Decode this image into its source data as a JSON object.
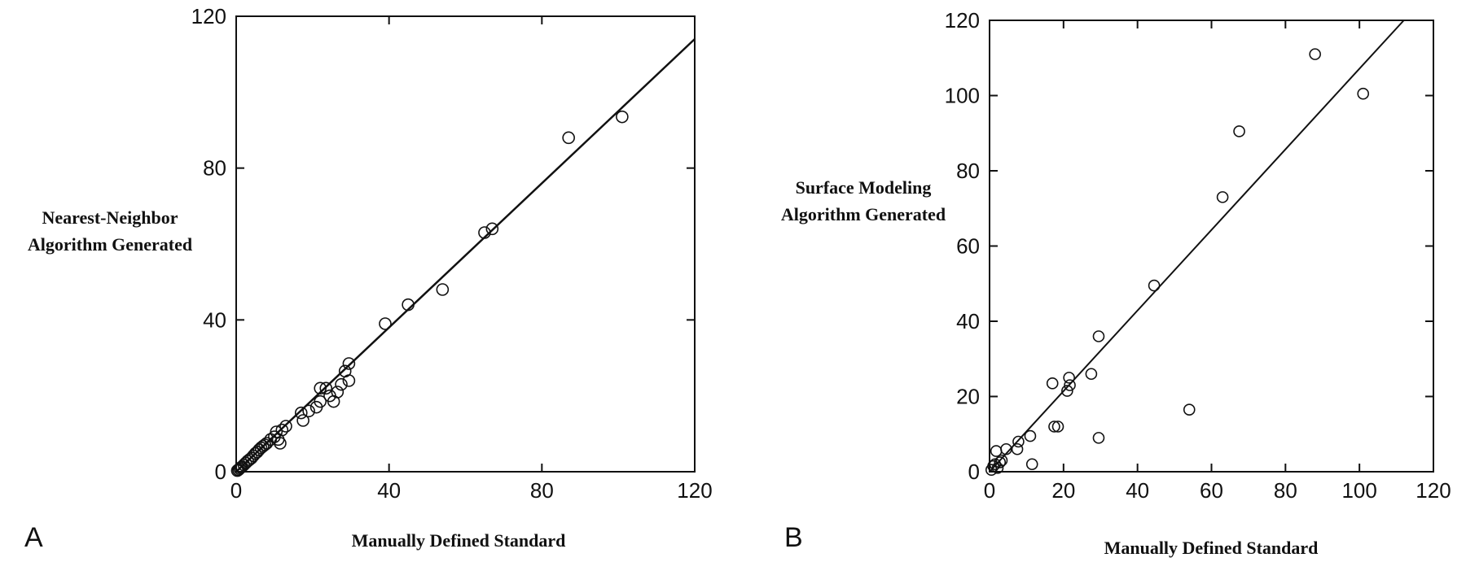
{
  "chart_data": [
    {
      "type": "scatter",
      "panel_label": "A",
      "xlabel": "Manually Defined Standard",
      "ylabel_lines": [
        "Nearest-Neighbor",
        "Algorithm Generated"
      ],
      "xlim": [
        0,
        120
      ],
      "ylim": [
        0,
        120
      ],
      "xticks": [
        0,
        40,
        80,
        120
      ],
      "yticks": [
        0,
        40,
        80,
        120
      ],
      "grid": false,
      "line": {
        "x": [
          0,
          120
        ],
        "y": [
          0,
          114
        ]
      },
      "points": [
        [
          0.3,
          0.3
        ],
        [
          0.6,
          0.5
        ],
        [
          0.9,
          0.8
        ],
        [
          1.2,
          1.1
        ],
        [
          1.5,
          1.3
        ],
        [
          2,
          1.8
        ],
        [
          2.5,
          2.3
        ],
        [
          3,
          2.8
        ],
        [
          3.5,
          3.2
        ],
        [
          4,
          3.6
        ],
        [
          4.5,
          4.2
        ],
        [
          5,
          4.8
        ],
        [
          5.5,
          5.2
        ],
        [
          6,
          5.8
        ],
        [
          6.5,
          6.3
        ],
        [
          7,
          6.7
        ],
        [
          7.5,
          7.1
        ],
        [
          8,
          7.5
        ],
        [
          9,
          8.5
        ],
        [
          10,
          9.2
        ],
        [
          10.5,
          10.5
        ],
        [
          11,
          8.5
        ],
        [
          11.5,
          7.5
        ],
        [
          12,
          11
        ],
        [
          13,
          12
        ],
        [
          17,
          15.5
        ],
        [
          17.5,
          13.5
        ],
        [
          19,
          16
        ],
        [
          21,
          17
        ],
        [
          22,
          18.5
        ],
        [
          22,
          22
        ],
        [
          23.5,
          22
        ],
        [
          24.5,
          20
        ],
        [
          25.5,
          18.5
        ],
        [
          26.5,
          21
        ],
        [
          27.5,
          23
        ],
        [
          28.5,
          26.5
        ],
        [
          29.5,
          28.5
        ],
        [
          29.5,
          24
        ],
        [
          39,
          39
        ],
        [
          45,
          44
        ],
        [
          54,
          48
        ],
        [
          65,
          63
        ],
        [
          67,
          64
        ],
        [
          87,
          88
        ],
        [
          101,
          93.5
        ]
      ]
    },
    {
      "type": "scatter",
      "panel_label": "B",
      "xlabel": "Manually Defined Standard",
      "ylabel_lines": [
        "Surface Modeling",
        "Algorithm Generated"
      ],
      "xlim": [
        0,
        120
      ],
      "ylim": [
        0,
        120
      ],
      "xticks": [
        0,
        20,
        40,
        60,
        80,
        100,
        120
      ],
      "yticks": [
        0,
        20,
        40,
        60,
        80,
        100,
        120
      ],
      "grid": false,
      "line": {
        "x": [
          0,
          112
        ],
        "y": [
          0,
          120
        ]
      },
      "points": [
        [
          0.5,
          0.5
        ],
        [
          1,
          1.5
        ],
        [
          1.5,
          2
        ],
        [
          1.8,
          5.5
        ],
        [
          2.2,
          1
        ],
        [
          2.8,
          2.5
        ],
        [
          3.3,
          3
        ],
        [
          4.5,
          6
        ],
        [
          7.5,
          6
        ],
        [
          7.8,
          8
        ],
        [
          11,
          9.5
        ],
        [
          11.5,
          2
        ],
        [
          17,
          23.5
        ],
        [
          17.5,
          12
        ],
        [
          18.5,
          12
        ],
        [
          21,
          21.5
        ],
        [
          21.5,
          25
        ],
        [
          21.7,
          23
        ],
        [
          27.5,
          26
        ],
        [
          29.5,
          36
        ],
        [
          29.5,
          9
        ],
        [
          44.5,
          49.5
        ],
        [
          54,
          16.5
        ],
        [
          63,
          73
        ],
        [
          67.5,
          90.5
        ],
        [
          88,
          111
        ],
        [
          101,
          100.5
        ]
      ]
    }
  ]
}
